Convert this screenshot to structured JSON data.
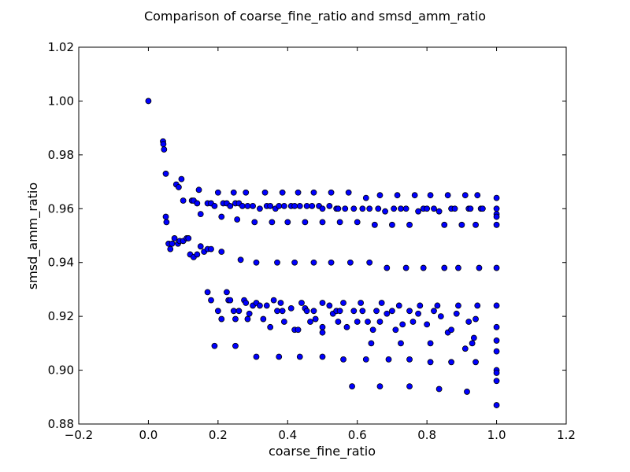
{
  "chart_data": {
    "type": "scatter",
    "title": "Comparison of coarse_fine_ratio and smsd_amm_ratio",
    "xlabel": "coarse_fine_ratio",
    "ylabel": "smsd_amm_ratio",
    "xlim": [
      -0.2,
      1.2
    ],
    "ylim": [
      0.88,
      1.02
    ],
    "xticks": [
      "−0.2",
      "0.0",
      "0.2",
      "0.4",
      "0.6",
      "0.8",
      "1.0",
      "1.2"
    ],
    "yticks": [
      "0.88",
      "0.90",
      "0.92",
      "0.94",
      "0.96",
      "0.98",
      "1.00",
      "1.02"
    ],
    "grid": false,
    "marker_color": "#0000ff",
    "marker_edge_color": "#000000",
    "points": [
      [
        0.0,
        1.0
      ],
      [
        0.042,
        0.985
      ],
      [
        0.043,
        0.984
      ],
      [
        0.045,
        0.982
      ],
      [
        0.05,
        0.973
      ],
      [
        0.08,
        0.969
      ],
      [
        0.087,
        0.968
      ],
      [
        0.095,
        0.971
      ],
      [
        0.1,
        0.963
      ],
      [
        0.125,
        0.963
      ],
      [
        0.13,
        0.963
      ],
      [
        0.14,
        0.962
      ],
      [
        0.145,
        0.967
      ],
      [
        0.15,
        0.958
      ],
      [
        0.17,
        0.962
      ],
      [
        0.18,
        0.962
      ],
      [
        0.19,
        0.961
      ],
      [
        0.2,
        0.966
      ],
      [
        0.21,
        0.957
      ],
      [
        0.215,
        0.962
      ],
      [
        0.225,
        0.962
      ],
      [
        0.235,
        0.961
      ],
      [
        0.245,
        0.966
      ],
      [
        0.25,
        0.962
      ],
      [
        0.255,
        0.956
      ],
      [
        0.26,
        0.962
      ],
      [
        0.27,
        0.961
      ],
      [
        0.28,
        0.966
      ],
      [
        0.285,
        0.961
      ],
      [
        0.3,
        0.961
      ],
      [
        0.305,
        0.955
      ],
      [
        0.32,
        0.96
      ],
      [
        0.335,
        0.966
      ],
      [
        0.34,
        0.961
      ],
      [
        0.35,
        0.961
      ],
      [
        0.355,
        0.955
      ],
      [
        0.365,
        0.96
      ],
      [
        0.375,
        0.961
      ],
      [
        0.385,
        0.966
      ],
      [
        0.39,
        0.961
      ],
      [
        0.4,
        0.955
      ],
      [
        0.41,
        0.961
      ],
      [
        0.42,
        0.961
      ],
      [
        0.43,
        0.966
      ],
      [
        0.435,
        0.961
      ],
      [
        0.45,
        0.955
      ],
      [
        0.455,
        0.961
      ],
      [
        0.47,
        0.961
      ],
      [
        0.475,
        0.966
      ],
      [
        0.49,
        0.961
      ],
      [
        0.5,
        0.955
      ],
      [
        0.5,
        0.96
      ],
      [
        0.52,
        0.961
      ],
      [
        0.525,
        0.966
      ],
      [
        0.54,
        0.96
      ],
      [
        0.545,
        0.96
      ],
      [
        0.55,
        0.955
      ],
      [
        0.565,
        0.96
      ],
      [
        0.575,
        0.966
      ],
      [
        0.59,
        0.96
      ],
      [
        0.6,
        0.955
      ],
      [
        0.615,
        0.96
      ],
      [
        0.625,
        0.964
      ],
      [
        0.635,
        0.96
      ],
      [
        0.65,
        0.954
      ],
      [
        0.66,
        0.96
      ],
      [
        0.665,
        0.965
      ],
      [
        0.68,
        0.959
      ],
      [
        0.7,
        0.954
      ],
      [
        0.705,
        0.96
      ],
      [
        0.715,
        0.965
      ],
      [
        0.725,
        0.96
      ],
      [
        0.74,
        0.96
      ],
      [
        0.75,
        0.954
      ],
      [
        0.765,
        0.965
      ],
      [
        0.775,
        0.959
      ],
      [
        0.79,
        0.96
      ],
      [
        0.8,
        0.96
      ],
      [
        0.81,
        0.965
      ],
      [
        0.82,
        0.96
      ],
      [
        0.835,
        0.959
      ],
      [
        0.85,
        0.954
      ],
      [
        0.86,
        0.965
      ],
      [
        0.87,
        0.96
      ],
      [
        0.88,
        0.96
      ],
      [
        0.9,
        0.954
      ],
      [
        0.91,
        0.965
      ],
      [
        0.92,
        0.96
      ],
      [
        0.925,
        0.96
      ],
      [
        0.94,
        0.954
      ],
      [
        0.945,
        0.965
      ],
      [
        0.955,
        0.96
      ],
      [
        0.96,
        0.96
      ],
      [
        1.0,
        0.964
      ],
      [
        1.0,
        0.96
      ],
      [
        1.0,
        0.958
      ],
      [
        1.0,
        0.957
      ],
      [
        1.0,
        0.954
      ],
      [
        0.05,
        0.957
      ],
      [
        0.052,
        0.955
      ],
      [
        0.058,
        0.947
      ],
      [
        0.063,
        0.945
      ],
      [
        0.068,
        0.947
      ],
      [
        0.075,
        0.949
      ],
      [
        0.085,
        0.947
      ],
      [
        0.09,
        0.948
      ],
      [
        0.1,
        0.948
      ],
      [
        0.11,
        0.949
      ],
      [
        0.115,
        0.949
      ],
      [
        0.12,
        0.943
      ],
      [
        0.13,
        0.942
      ],
      [
        0.14,
        0.943
      ],
      [
        0.15,
        0.946
      ],
      [
        0.16,
        0.944
      ],
      [
        0.17,
        0.945
      ],
      [
        0.18,
        0.945
      ],
      [
        0.21,
        0.944
      ],
      [
        0.265,
        0.941
      ],
      [
        0.31,
        0.94
      ],
      [
        0.37,
        0.94
      ],
      [
        0.42,
        0.94
      ],
      [
        0.475,
        0.94
      ],
      [
        0.525,
        0.94
      ],
      [
        0.58,
        0.94
      ],
      [
        0.635,
        0.94
      ],
      [
        0.685,
        0.938
      ],
      [
        0.74,
        0.938
      ],
      [
        0.79,
        0.938
      ],
      [
        0.85,
        0.938
      ],
      [
        0.89,
        0.938
      ],
      [
        0.95,
        0.938
      ],
      [
        1.0,
        0.938
      ],
      [
        0.17,
        0.929
      ],
      [
        0.18,
        0.926
      ],
      [
        0.2,
        0.922
      ],
      [
        0.21,
        0.919
      ],
      [
        0.225,
        0.929
      ],
      [
        0.23,
        0.926
      ],
      [
        0.235,
        0.926
      ],
      [
        0.245,
        0.922
      ],
      [
        0.25,
        0.919
      ],
      [
        0.26,
        0.922
      ],
      [
        0.275,
        0.926
      ],
      [
        0.28,
        0.925
      ],
      [
        0.285,
        0.919
      ],
      [
        0.29,
        0.921
      ],
      [
        0.3,
        0.924
      ],
      [
        0.31,
        0.925
      ],
      [
        0.32,
        0.924
      ],
      [
        0.33,
        0.919
      ],
      [
        0.34,
        0.924
      ],
      [
        0.35,
        0.916
      ],
      [
        0.36,
        0.926
      ],
      [
        0.37,
        0.922
      ],
      [
        0.38,
        0.925
      ],
      [
        0.385,
        0.922
      ],
      [
        0.39,
        0.918
      ],
      [
        0.41,
        0.923
      ],
      [
        0.42,
        0.915
      ],
      [
        0.43,
        0.915
      ],
      [
        0.44,
        0.925
      ],
      [
        0.45,
        0.923
      ],
      [
        0.455,
        0.922
      ],
      [
        0.465,
        0.918
      ],
      [
        0.475,
        0.922
      ],
      [
        0.48,
        0.919
      ],
      [
        0.5,
        0.925
      ],
      [
        0.5,
        0.916
      ],
      [
        0.5,
        0.914
      ],
      [
        0.52,
        0.924
      ],
      [
        0.53,
        0.921
      ],
      [
        0.54,
        0.922
      ],
      [
        0.545,
        0.918
      ],
      [
        0.55,
        0.922
      ],
      [
        0.56,
        0.925
      ],
      [
        0.57,
        0.916
      ],
      [
        0.59,
        0.922
      ],
      [
        0.6,
        0.918
      ],
      [
        0.61,
        0.925
      ],
      [
        0.615,
        0.922
      ],
      [
        0.63,
        0.918
      ],
      [
        0.64,
        0.91
      ],
      [
        0.645,
        0.915
      ],
      [
        0.655,
        0.922
      ],
      [
        0.665,
        0.918
      ],
      [
        0.67,
        0.925
      ],
      [
        0.685,
        0.921
      ],
      [
        0.7,
        0.922
      ],
      [
        0.71,
        0.915
      ],
      [
        0.72,
        0.924
      ],
      [
        0.725,
        0.91
      ],
      [
        0.73,
        0.917
      ],
      [
        0.75,
        0.922
      ],
      [
        0.76,
        0.918
      ],
      [
        0.775,
        0.921
      ],
      [
        0.78,
        0.924
      ],
      [
        0.8,
        0.917
      ],
      [
        0.81,
        0.91
      ],
      [
        0.82,
        0.922
      ],
      [
        0.83,
        0.924
      ],
      [
        0.84,
        0.92
      ],
      [
        0.86,
        0.914
      ],
      [
        0.87,
        0.915
      ],
      [
        0.885,
        0.921
      ],
      [
        0.89,
        0.924
      ],
      [
        0.91,
        0.908
      ],
      [
        0.92,
        0.918
      ],
      [
        0.93,
        0.91
      ],
      [
        0.935,
        0.912
      ],
      [
        0.94,
        0.919
      ],
      [
        0.945,
        0.924
      ],
      [
        1.0,
        0.924
      ],
      [
        1.0,
        0.916
      ],
      [
        1.0,
        0.911
      ],
      [
        1.0,
        0.907
      ],
      [
        0.19,
        0.909
      ],
      [
        0.25,
        0.909
      ],
      [
        0.31,
        0.905
      ],
      [
        0.375,
        0.905
      ],
      [
        0.435,
        0.905
      ],
      [
        0.5,
        0.905
      ],
      [
        0.56,
        0.904
      ],
      [
        0.625,
        0.904
      ],
      [
        0.69,
        0.904
      ],
      [
        0.75,
        0.904
      ],
      [
        0.81,
        0.903
      ],
      [
        0.87,
        0.903
      ],
      [
        0.94,
        0.903
      ],
      [
        1.0,
        0.9
      ],
      [
        1.0,
        0.899
      ],
      [
        0.585,
        0.894
      ],
      [
        0.665,
        0.894
      ],
      [
        0.75,
        0.894
      ],
      [
        0.835,
        0.893
      ],
      [
        0.915,
        0.892
      ],
      [
        1.0,
        0.896
      ],
      [
        1.0,
        0.887
      ]
    ]
  }
}
